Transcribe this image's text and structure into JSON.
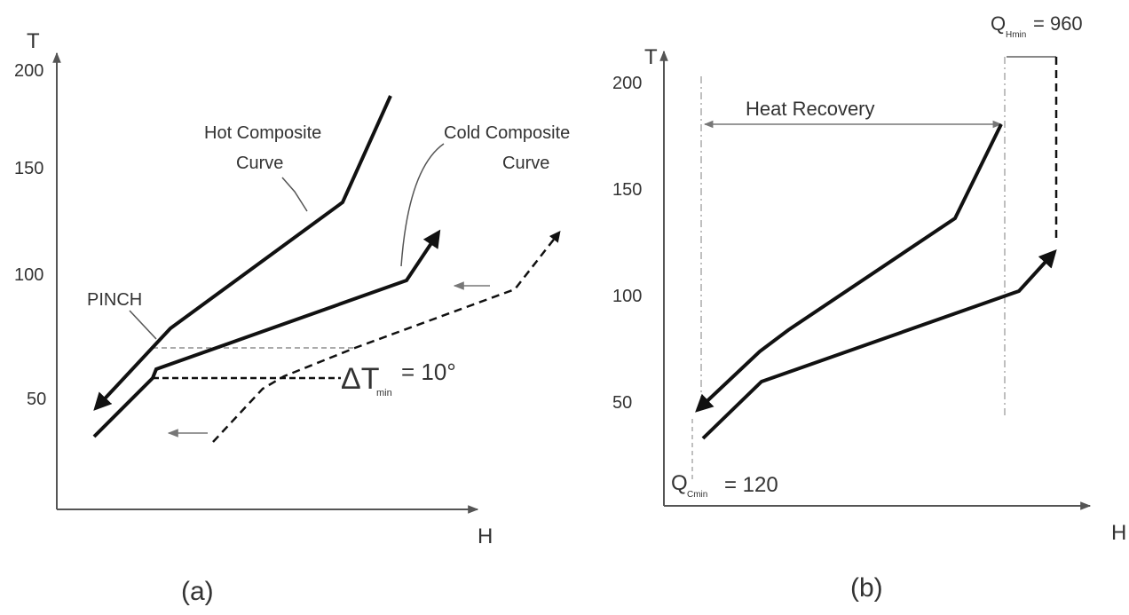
{
  "panels": [
    {
      "caption": "(a)",
      "y_axis_label": "T",
      "x_axis_label": "H",
      "y_ticks": [
        "200",
        "150",
        "100",
        "50"
      ],
      "annotations": {
        "hot_curve_l1": "Hot Composite",
        "hot_curve_l2": "Curve",
        "cold_curve_l1": "Cold Composite",
        "cold_curve_l2": "Curve",
        "pinch": "PINCH",
        "delta_t_symbol": "ΔT",
        "delta_t_subscript": "min",
        "delta_t_value": "= 10°"
      }
    },
    {
      "caption": "(b)",
      "y_axis_label": "T",
      "x_axis_label": "H",
      "y_ticks": [
        "200",
        "150",
        "100",
        "50"
      ],
      "annotations": {
        "heat_recovery": "Heat Recovery",
        "q_hmin_symbol": "Q",
        "q_hmin_subscript": "Hmin",
        "q_hmin_value": "= 960",
        "q_cmin_symbol": "Q",
        "q_cmin_subscript": "Cmin",
        "q_cmin_value": "= 120"
      }
    }
  ],
  "colors": {
    "axis": "#555555",
    "curve": "#111111",
    "guide": "#aaaaaa"
  }
}
